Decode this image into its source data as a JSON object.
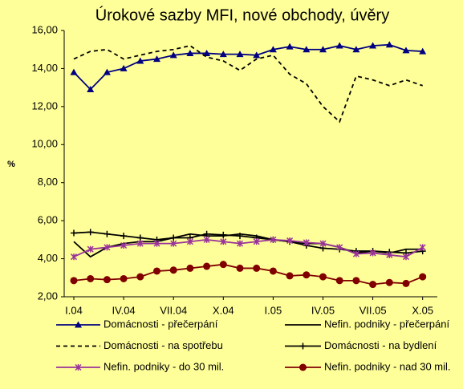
{
  "chart_data": {
    "type": "line",
    "title": "Úrokové sazby MFI, nové obchody, úvěry",
    "y_label": "%",
    "categories": [
      "I.04",
      null,
      null,
      "IV.04",
      null,
      null,
      "VII.04",
      null,
      null,
      "X.04",
      null,
      null,
      "I.05",
      null,
      null,
      "IV.05",
      null,
      null,
      "VII.05",
      null,
      null,
      "X.05"
    ],
    "ylim": [
      2,
      16
    ],
    "yticks": [
      {
        "value": 2,
        "label": "2,00"
      },
      {
        "value": 4,
        "label": "4,00"
      },
      {
        "value": 6,
        "label": "6,00"
      },
      {
        "value": 8,
        "label": "8,00"
      },
      {
        "value": 10,
        "label": "10,00"
      },
      {
        "value": 12,
        "label": "12,00"
      },
      {
        "value": 14,
        "label": "14,00"
      },
      {
        "value": 16,
        "label": "16,00"
      }
    ],
    "grid": false,
    "series": [
      {
        "name": "Domácnosti - přečerpání",
        "color": "#000080",
        "marker": "triangle",
        "dashed": false,
        "values": [
          13.8,
          12.9,
          13.8,
          14.0,
          14.4,
          14.5,
          14.7,
          14.8,
          14.8,
          14.75,
          14.75,
          14.7,
          15.0,
          15.15,
          15.0,
          15.0,
          15.2,
          15.0,
          15.2,
          15.25,
          14.95,
          14.9
        ]
      },
      {
        "name": "Nefin. podniky - přečerpání",
        "color": "#000000",
        "marker": "none",
        "dashed": false,
        "values": [
          4.9,
          4.1,
          4.6,
          4.8,
          4.9,
          4.9,
          5.1,
          5.3,
          5.2,
          5.2,
          5.3,
          5.2,
          5.0,
          4.9,
          4.8,
          4.8,
          4.6,
          4.3,
          4.4,
          4.3,
          4.5,
          4.5
        ]
      },
      {
        "name": "Domácnosti - na spotřebu",
        "color": "#000000",
        "marker": "none",
        "dashed": true,
        "values": [
          14.5,
          14.9,
          15.0,
          14.5,
          14.7,
          14.9,
          15.0,
          15.2,
          14.6,
          14.4,
          13.9,
          14.5,
          14.7,
          13.7,
          13.2,
          12.0,
          11.2,
          13.6,
          13.4,
          13.1,
          13.4,
          13.1
        ]
      },
      {
        "name": "Domácnosti - na bydlení",
        "color": "#000000",
        "marker": "plus",
        "dashed": false,
        "values": [
          5.35,
          5.4,
          5.3,
          5.2,
          5.1,
          5.0,
          5.1,
          5.1,
          5.3,
          5.25,
          5.2,
          5.1,
          5.0,
          4.9,
          4.7,
          4.55,
          4.5,
          4.4,
          4.4,
          4.35,
          4.3,
          4.4
        ]
      },
      {
        "name": "Nefin. podniky - do 30 mil.",
        "color": "#993399",
        "marker": "star",
        "dashed": false,
        "values": [
          4.1,
          4.5,
          4.6,
          4.7,
          4.8,
          4.8,
          4.8,
          4.9,
          5.0,
          4.9,
          4.8,
          4.9,
          5.0,
          4.95,
          4.85,
          4.8,
          4.6,
          4.25,
          4.3,
          4.2,
          4.1,
          4.6
        ]
      },
      {
        "name": "Nefin. podniky - nad 30 mil.",
        "color": "#800000",
        "marker": "circle",
        "dashed": false,
        "values": [
          2.85,
          2.95,
          2.9,
          2.95,
          3.05,
          3.35,
          3.4,
          3.5,
          3.6,
          3.7,
          3.5,
          3.5,
          3.35,
          3.1,
          3.15,
          3.05,
          2.85,
          2.85,
          2.65,
          2.75,
          2.7,
          3.05
        ]
      }
    ]
  }
}
